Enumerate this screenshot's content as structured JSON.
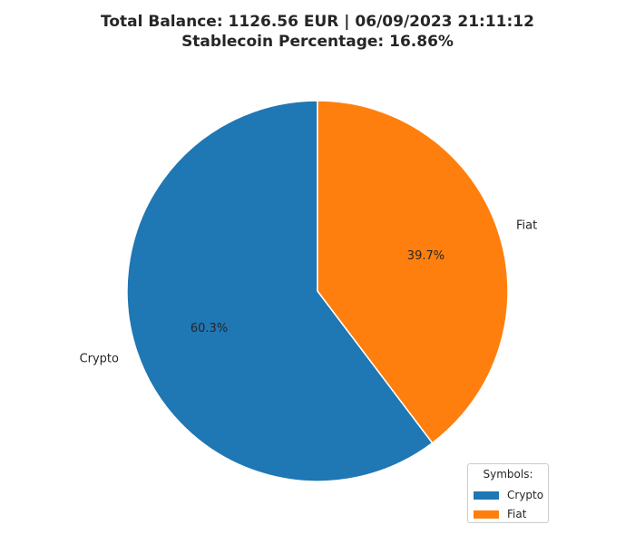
{
  "chart_data": {
    "type": "pie",
    "title_lines": [
      "Total Balance: 1126.56 EUR | 06/09/2023 21:11:12",
      "Stablecoin Percentage: 16.86%"
    ],
    "slices": [
      {
        "label": "Crypto",
        "value": 60.3,
        "pct_label": "60.3%",
        "color": "#1f77b4"
      },
      {
        "label": "Fiat",
        "value": 39.7,
        "pct_label": "39.7%",
        "color": "#ff7f0e"
      }
    ],
    "start_angle_deg": 90,
    "direction": "counterclockwise",
    "legend": {
      "title": "Symbols:",
      "placement": "lower-right",
      "entries": [
        {
          "label": "Crypto",
          "color": "#1f77b4"
        },
        {
          "label": "Fiat",
          "color": "#ff7f0e"
        }
      ]
    }
  }
}
